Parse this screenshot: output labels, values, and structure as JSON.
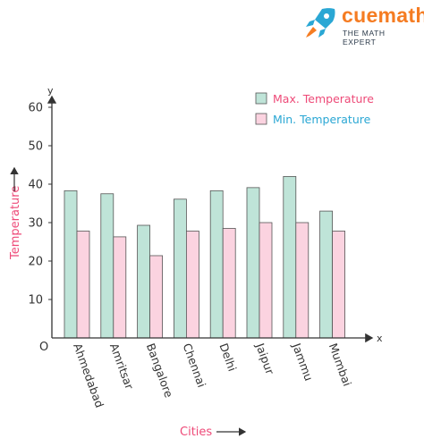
{
  "brand": {
    "name": "cuemath",
    "tagline": "THE MATH EXPERT",
    "icon": "rocket-icon",
    "color": "#f57c22"
  },
  "chart_data": {
    "type": "bar",
    "categories": [
      "Ahmedabad",
      "Amritsar",
      "Bangalore",
      "Chennai",
      "Delhi",
      "Jaipur",
      "Jammu",
      "Mumbai"
    ],
    "series": [
      {
        "name": "Max. Temperature",
        "values": [
          38.3,
          37.5,
          29.3,
          36.1,
          38.3,
          39.1,
          42.0,
          33.0
        ],
        "color": "#bfe4d8"
      },
      {
        "name": "Min. Temperature",
        "values": [
          27.8,
          26.3,
          21.4,
          27.8,
          28.5,
          30.0,
          30.0,
          27.8
        ],
        "color": "#fbd3e0"
      }
    ],
    "xlabel": "Cities",
    "ylabel": "Temperature",
    "x_axis_letter": "x",
    "y_axis_letter": "y",
    "origin_label": "O",
    "yticks": [
      10,
      20,
      30,
      40,
      50,
      60
    ],
    "ylim": [
      0,
      70
    ],
    "grid": false,
    "legend_position": "top-right"
  }
}
